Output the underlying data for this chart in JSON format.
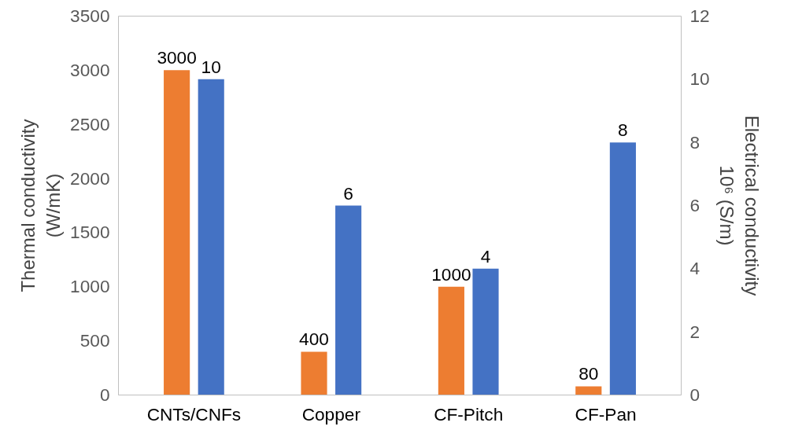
{
  "chart_data": {
    "type": "bar",
    "categories": [
      "CNTs/CNFs",
      "Copper",
      "CF-Pitch",
      "CF-Pan"
    ],
    "series": [
      {
        "color": "#ed7d31",
        "values": [
          3000,
          400,
          1000,
          80
        ]
      },
      {
        "color": "#4472c4",
        "values": [
          10,
          6,
          4,
          8
        ],
        "axis": "y2"
      }
    ],
    "ylabel": "Thermal conductivity\n(W/mK)",
    "y2label": "Electrical conductivity\n10⁶ (S/m)",
    "ylim": [
      0,
      3500
    ],
    "yticks": [
      0,
      500,
      1000,
      1500,
      2000,
      2500,
      3000,
      3500
    ],
    "y2lim": [
      0,
      12
    ],
    "y2ticks": [
      0,
      2,
      4,
      6,
      8,
      10,
      12
    ],
    "data_labels": true,
    "grid": false
  }
}
